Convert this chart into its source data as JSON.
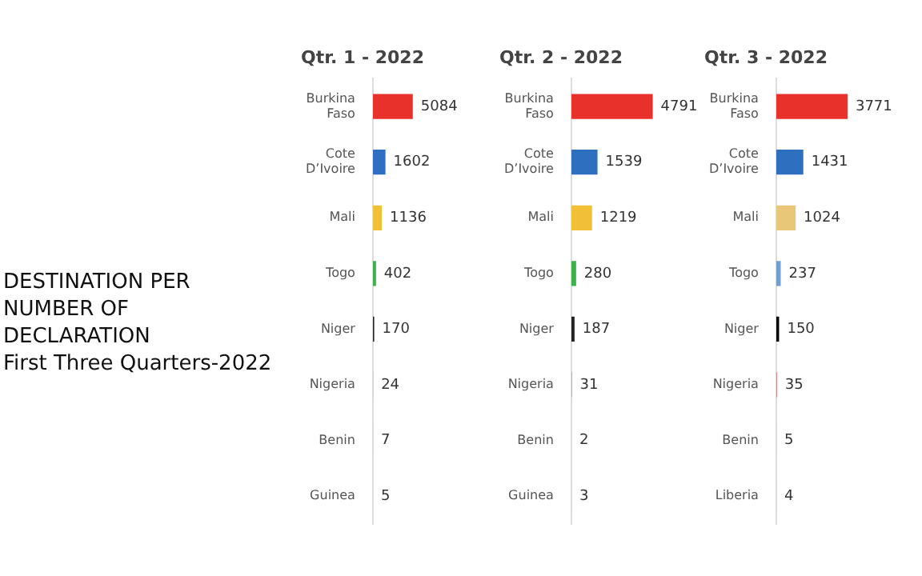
{
  "chart_data": [
    {
      "type": "other",
      "title": "DESTINATION PER NUMBER OF DECLARATION",
      "subtitle": "First Three Quarters-2022"
    },
    {
      "type": "bar",
      "orientation": "horizontal",
      "title": "Qtr. 1 - 2022",
      "categories": [
        "Burkina Faso",
        "Cote D’Ivoire",
        "Mali",
        "Togo",
        "Niger",
        "Nigeria",
        "Benin",
        "Guinea"
      ],
      "values": [
        5084,
        1602,
        1136,
        402,
        170,
        24,
        7,
        5
      ],
      "colors": [
        "#e8312a",
        "#2f6fbf",
        "#f2c037",
        "#3cb34a",
        "#222222",
        "#999999",
        "#999999",
        "#999999"
      ],
      "data_labels": true,
      "legend": false,
      "tick_labels": "y"
    },
    {
      "type": "bar",
      "orientation": "horizontal",
      "title": "Qtr. 2 - 2022",
      "categories": [
        "Burkina Faso",
        "Cote D’Ivoire",
        "Mali",
        "Togo",
        "Niger",
        "Nigeria",
        "Benin",
        "Guinea"
      ],
      "values": [
        4791,
        1539,
        1219,
        280,
        187,
        31,
        2,
        3
      ],
      "colors": [
        "#e8312a",
        "#2f6fbf",
        "#f2c037",
        "#3cb34a",
        "#222222",
        "#999999",
        "#999999",
        "#999999"
      ],
      "data_labels": true,
      "legend": false,
      "tick_labels": "y"
    },
    {
      "type": "bar",
      "orientation": "horizontal",
      "title": "Qtr. 3 - 2022",
      "categories": [
        "Burkina Faso",
        "Cote D’Ivoire",
        "Mali",
        "Togo",
        "Niger",
        "Nigeria",
        "Benin",
        "Liberia"
      ],
      "values": [
        3771,
        1431,
        1024,
        237,
        150,
        35,
        5,
        4
      ],
      "colors": [
        "#e8312a",
        "#2f6fbf",
        "#e8c878",
        "#6fa0d0",
        "#000000",
        "#d07070",
        "#d07070",
        "#d07070"
      ],
      "data_labels": true,
      "legend": false,
      "tick_labels": "y"
    }
  ]
}
